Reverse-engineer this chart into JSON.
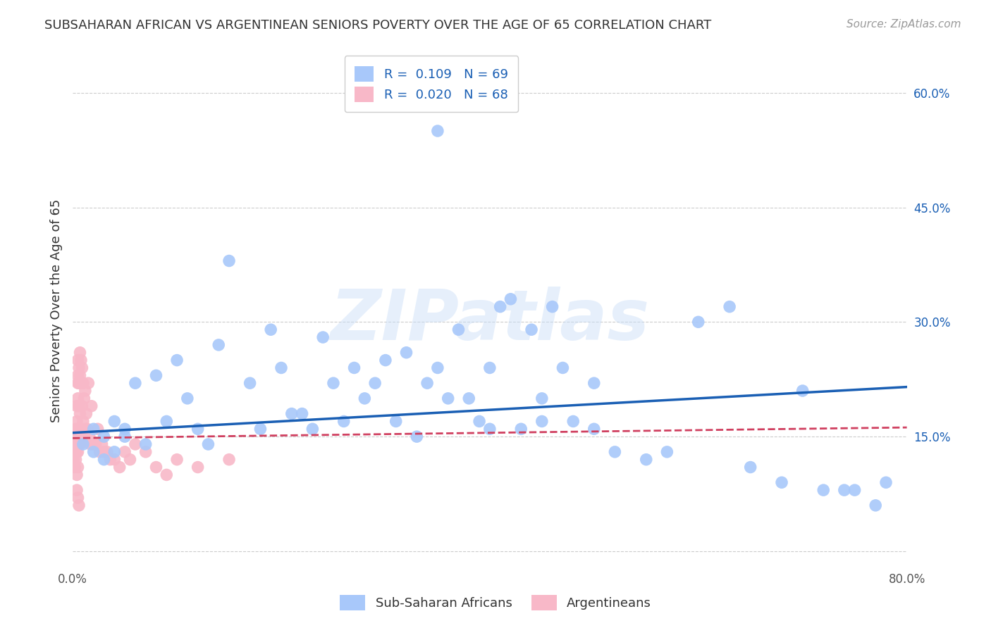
{
  "title": "SUBSAHARAN AFRICAN VS ARGENTINEAN SENIORS POVERTY OVER THE AGE OF 65 CORRELATION CHART",
  "source": "Source: ZipAtlas.com",
  "ylabel": "Seniors Poverty Over the Age of 65",
  "xlim": [
    0.0,
    0.8
  ],
  "ylim": [
    -0.02,
    0.65
  ],
  "xticks": [
    0.0,
    0.1,
    0.2,
    0.3,
    0.4,
    0.5,
    0.6,
    0.7,
    0.8
  ],
  "xticklabels": [
    "0.0%",
    "",
    "",
    "",
    "",
    "",
    "",
    "",
    "80.0%"
  ],
  "ytick_positions": [
    0.0,
    0.15,
    0.3,
    0.45,
    0.6
  ],
  "ytick_labels_right": [
    "",
    "15.0%",
    "30.0%",
    "45.0%",
    "60.0%"
  ],
  "grid_color": "#cccccc",
  "background_color": "#ffffff",
  "blue_color": "#a8c8fa",
  "pink_color": "#f8b8c8",
  "blue_line_color": "#1a5fb4",
  "pink_line_color": "#d04060",
  "R_blue": 0.109,
  "N_blue": 69,
  "R_pink": 0.02,
  "N_pink": 68,
  "legend_label_blue": "Sub-Saharan Africans",
  "legend_label_pink": "Argentineans",
  "watermark": "ZIPatlas",
  "blue_scatter_x": [
    0.01,
    0.02,
    0.02,
    0.03,
    0.03,
    0.04,
    0.04,
    0.05,
    0.05,
    0.06,
    0.07,
    0.08,
    0.09,
    0.1,
    0.11,
    0.12,
    0.13,
    0.14,
    0.15,
    0.17,
    0.18,
    0.19,
    0.2,
    0.21,
    0.22,
    0.23,
    0.24,
    0.25,
    0.26,
    0.27,
    0.28,
    0.29,
    0.3,
    0.31,
    0.32,
    0.33,
    0.34,
    0.35,
    0.36,
    0.37,
    0.38,
    0.39,
    0.4,
    0.41,
    0.42,
    0.43,
    0.44,
    0.45,
    0.46,
    0.47,
    0.48,
    0.5,
    0.52,
    0.55,
    0.57,
    0.6,
    0.63,
    0.65,
    0.68,
    0.7,
    0.72,
    0.74,
    0.75,
    0.77,
    0.78,
    0.35,
    0.4,
    0.45,
    0.5
  ],
  "blue_scatter_y": [
    0.14,
    0.16,
    0.13,
    0.15,
    0.12,
    0.17,
    0.13,
    0.15,
    0.16,
    0.22,
    0.14,
    0.23,
    0.17,
    0.25,
    0.2,
    0.16,
    0.14,
    0.27,
    0.38,
    0.22,
    0.16,
    0.29,
    0.24,
    0.18,
    0.18,
    0.16,
    0.28,
    0.22,
    0.17,
    0.24,
    0.2,
    0.22,
    0.25,
    0.17,
    0.26,
    0.15,
    0.22,
    0.24,
    0.2,
    0.29,
    0.2,
    0.17,
    0.24,
    0.32,
    0.33,
    0.16,
    0.29,
    0.2,
    0.32,
    0.24,
    0.17,
    0.16,
    0.13,
    0.12,
    0.13,
    0.3,
    0.32,
    0.11,
    0.09,
    0.21,
    0.08,
    0.08,
    0.08,
    0.06,
    0.09,
    0.55,
    0.16,
    0.17,
    0.22
  ],
  "pink_scatter_x": [
    0.001,
    0.001,
    0.002,
    0.002,
    0.003,
    0.003,
    0.003,
    0.003,
    0.004,
    0.004,
    0.004,
    0.004,
    0.005,
    0.005,
    0.005,
    0.005,
    0.005,
    0.005,
    0.005,
    0.005,
    0.006,
    0.006,
    0.006,
    0.006,
    0.006,
    0.007,
    0.007,
    0.007,
    0.007,
    0.008,
    0.008,
    0.008,
    0.009,
    0.009,
    0.01,
    0.01,
    0.011,
    0.011,
    0.012,
    0.012,
    0.013,
    0.014,
    0.015,
    0.016,
    0.017,
    0.018,
    0.02,
    0.022,
    0.024,
    0.026,
    0.028,
    0.03,
    0.033,
    0.036,
    0.04,
    0.045,
    0.05,
    0.055,
    0.06,
    0.07,
    0.08,
    0.09,
    0.1,
    0.12,
    0.15,
    0.004,
    0.005,
    0.006
  ],
  "pink_scatter_y": [
    0.12,
    0.14,
    0.13,
    0.11,
    0.15,
    0.14,
    0.16,
    0.12,
    0.17,
    0.19,
    0.13,
    0.1,
    0.23,
    0.25,
    0.22,
    0.2,
    0.16,
    0.15,
    0.13,
    0.11,
    0.24,
    0.22,
    0.19,
    0.16,
    0.14,
    0.26,
    0.23,
    0.18,
    0.14,
    0.25,
    0.22,
    0.16,
    0.24,
    0.19,
    0.22,
    0.17,
    0.2,
    0.15,
    0.21,
    0.16,
    0.18,
    0.16,
    0.22,
    0.15,
    0.14,
    0.19,
    0.14,
    0.14,
    0.16,
    0.13,
    0.14,
    0.13,
    0.13,
    0.12,
    0.12,
    0.11,
    0.13,
    0.12,
    0.14,
    0.13,
    0.11,
    0.1,
    0.12,
    0.11,
    0.12,
    0.08,
    0.07,
    0.06
  ]
}
